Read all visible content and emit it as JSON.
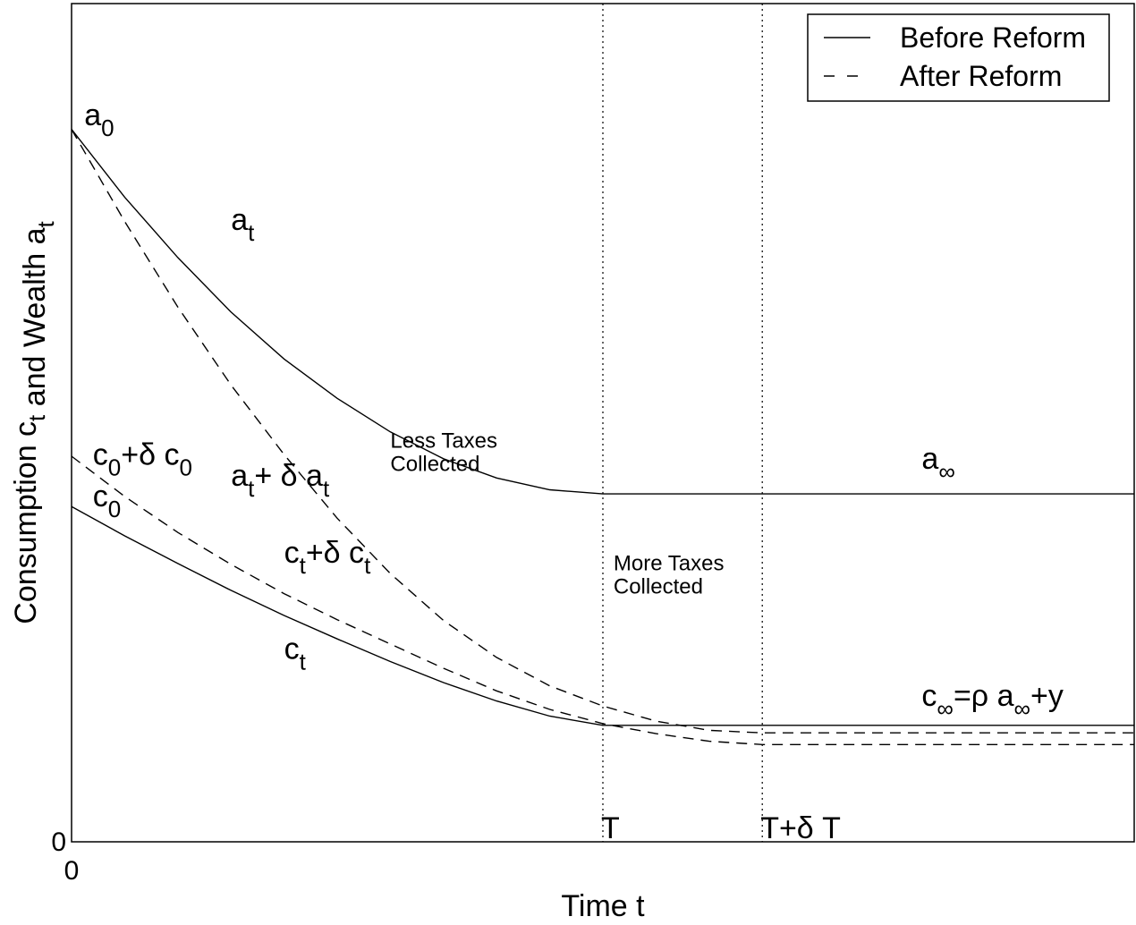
{
  "chart_data": {
    "type": "line",
    "xlabel": "Time t",
    "ylabel": "Consumption c_t and Wealth a_t",
    "xlim": [
      0,
      10
    ],
    "ylim": [
      0,
      10
    ],
    "x_ticks": [
      {
        "x": 0,
        "label": "0"
      }
    ],
    "y_ticks": [
      {
        "y": 0,
        "label": "0"
      }
    ],
    "grid": false,
    "legend_position": "top-right",
    "legend": [
      {
        "label": "Before Reform",
        "style": "solid"
      },
      {
        "label": "After Reform",
        "style": "dashed"
      }
    ],
    "vertical_lines": [
      {
        "x": 5.0,
        "label": "T",
        "style": "dotted"
      },
      {
        "x": 6.5,
        "label": "T+δ T",
        "style": "dotted"
      }
    ],
    "series": [
      {
        "key": "a_before",
        "legend": "Before Reform",
        "style": "solid",
        "points": [
          [
            0,
            8.5
          ],
          [
            0.5,
            7.69
          ],
          [
            1,
            6.97
          ],
          [
            1.5,
            6.32
          ],
          [
            2,
            5.76
          ],
          [
            2.5,
            5.29
          ],
          [
            3,
            4.89
          ],
          [
            3.5,
            4.57
          ],
          [
            4,
            4.34
          ],
          [
            4.5,
            4.2
          ],
          [
            5,
            4.15
          ],
          [
            10,
            4.15
          ]
        ]
      },
      {
        "key": "a_after",
        "legend": "After Reform",
        "style": "dashed",
        "points": [
          [
            0,
            8.5
          ],
          [
            0.5,
            7.4
          ],
          [
            1,
            6.38
          ],
          [
            1.5,
            5.45
          ],
          [
            2,
            4.62
          ],
          [
            2.5,
            3.86
          ],
          [
            3,
            3.2
          ],
          [
            3.5,
            2.64
          ],
          [
            4,
            2.2
          ],
          [
            4.5,
            1.86
          ],
          [
            5,
            1.62
          ],
          [
            5.5,
            1.44
          ],
          [
            6,
            1.33
          ],
          [
            6.5,
            1.3
          ],
          [
            10,
            1.3
          ]
        ]
      },
      {
        "key": "c_before",
        "legend": "Before Reform",
        "style": "solid",
        "points": [
          [
            0,
            4.0
          ],
          [
            0.5,
            3.65
          ],
          [
            1,
            3.32
          ],
          [
            1.5,
            3.0
          ],
          [
            2,
            2.7
          ],
          [
            2.5,
            2.42
          ],
          [
            3,
            2.15
          ],
          [
            3.5,
            1.9
          ],
          [
            4,
            1.68
          ],
          [
            4.5,
            1.5
          ],
          [
            5,
            1.39
          ],
          [
            10,
            1.39
          ]
        ]
      },
      {
        "key": "c_after",
        "legend": "After Reform",
        "style": "dashed",
        "points": [
          [
            0,
            4.6
          ],
          [
            0.5,
            4.12
          ],
          [
            1,
            3.69
          ],
          [
            1.5,
            3.31
          ],
          [
            2,
            2.96
          ],
          [
            2.5,
            2.65
          ],
          [
            3,
            2.36
          ],
          [
            3.5,
            2.07
          ],
          [
            4,
            1.8
          ],
          [
            4.5,
            1.58
          ],
          [
            5,
            1.41
          ],
          [
            5.5,
            1.29
          ],
          [
            6,
            1.2
          ],
          [
            6.5,
            1.16
          ],
          [
            10,
            1.16
          ]
        ]
      }
    ],
    "annotations": [
      {
        "key": "a0",
        "parts": [
          {
            "t": "a"
          },
          {
            "t": "0",
            "sub": true
          }
        ],
        "at": [
          0.12,
          8.55
        ],
        "size": "large"
      },
      {
        "key": "at",
        "parts": [
          {
            "t": "a"
          },
          {
            "t": "t",
            "sub": true
          }
        ],
        "at": [
          1.5,
          7.3
        ],
        "size": "large"
      },
      {
        "key": "ainf",
        "parts": [
          {
            "t": "a"
          },
          {
            "t": "∞",
            "sub": true
          }
        ],
        "at": [
          8.0,
          4.45
        ],
        "size": "large"
      },
      {
        "key": "at_delta",
        "parts": [
          {
            "t": "a"
          },
          {
            "t": "t",
            "sub": true
          },
          {
            "t": "+ δ a"
          },
          {
            "t": "t",
            "sub": true
          }
        ],
        "at": [
          1.5,
          4.25
        ],
        "size": "large"
      },
      {
        "key": "less_taxes",
        "lines": [
          "Less Taxes",
          "Collected"
        ],
        "at": [
          3.0,
          4.7
        ],
        "size": "small"
      },
      {
        "key": "c0_delta",
        "parts": [
          {
            "t": "c"
          },
          {
            "t": "0",
            "sub": true
          },
          {
            "t": "+δ c"
          },
          {
            "t": "0",
            "sub": true
          }
        ],
        "at": [
          0.2,
          4.5
        ],
        "size": "large"
      },
      {
        "key": "c0",
        "parts": [
          {
            "t": "c"
          },
          {
            "t": "0",
            "sub": true
          }
        ],
        "at": [
          0.2,
          4.0
        ],
        "size": "large"
      },
      {
        "key": "ct_delta",
        "parts": [
          {
            "t": "c"
          },
          {
            "t": "t",
            "sub": true
          },
          {
            "t": "+δ c"
          },
          {
            "t": "t",
            "sub": true
          }
        ],
        "at": [
          2.0,
          3.33
        ],
        "size": "large"
      },
      {
        "key": "more_taxes",
        "lines": [
          "More Taxes",
          "Collected"
        ],
        "at": [
          5.1,
          3.24
        ],
        "size": "small"
      },
      {
        "key": "ct",
        "parts": [
          {
            "t": "c"
          },
          {
            "t": "t",
            "sub": true
          }
        ],
        "at": [
          2.0,
          2.18
        ],
        "size": "large"
      },
      {
        "key": "cinf",
        "parts": [
          {
            "t": "c"
          },
          {
            "t": "∞",
            "sub": true
          },
          {
            "t": "=ρ a"
          },
          {
            "t": "∞",
            "sub": true
          },
          {
            "t": "+y"
          }
        ],
        "at": [
          8.0,
          1.62
        ],
        "size": "large"
      }
    ]
  }
}
